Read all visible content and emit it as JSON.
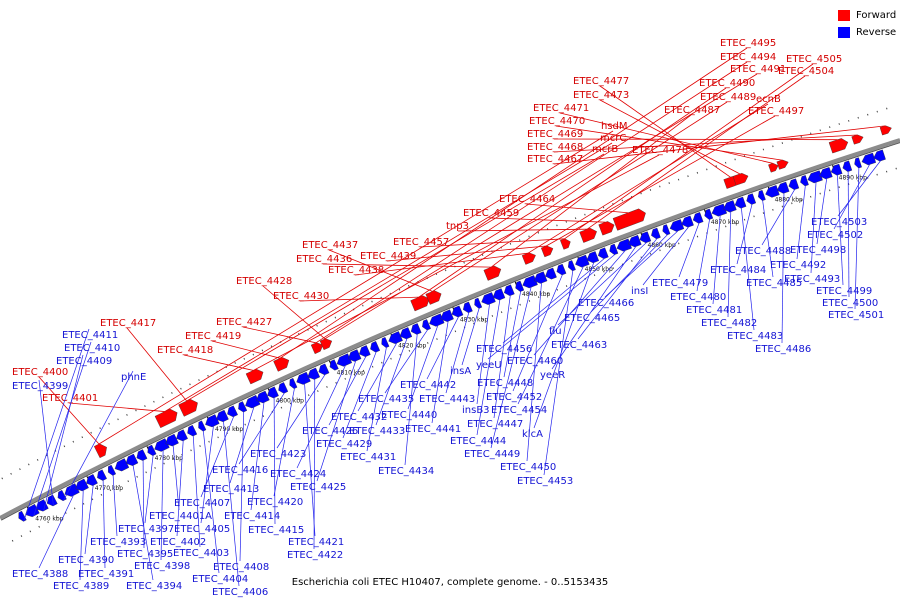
{
  "caption": "Escherichia coli ETEC H10407, complete genome. - 0..5153435",
  "legend": [
    {
      "label": "Forward",
      "color": "#ff0000"
    },
    {
      "label": "Reverse",
      "color": "#0000ff"
    }
  ],
  "ticks": [
    "4760 kbp",
    "4770 kbp",
    "4780 kbp",
    "4790 kbp",
    "4800 kbp",
    "4810 kbp",
    "4820 kbp",
    "4830 kbp",
    "4840 kbp",
    "4850 kbp",
    "4860 kbp",
    "4870 kbp",
    "4880 kbp",
    "4890 kbp"
  ],
  "forward_labels": [
    "ETEC_4400",
    "ETEC_4401",
    "ETEC_4417",
    "ETEC_4418",
    "ETEC_4419",
    "ETEC_4427",
    "ETEC_4428",
    "ETEC_4430",
    "ETEC_4437",
    "ETEC_4436",
    "ETEC_4438",
    "ETEC_4439",
    "ETEC_4457",
    "tnp3",
    "ETEC_4459",
    "ETEC_4464",
    "ETEC_4477",
    "ETEC_4473",
    "ETEC_4471",
    "ETEC_4470",
    "ETEC_4469",
    "ETEC_4468",
    "ETEC_4467",
    "hsdM",
    "mcrC",
    "mcrB",
    "ETEC_4478",
    "ETEC_4495",
    "ETEC_4494",
    "ETEC_4491",
    "ETEC_4490",
    "ETEC_4489",
    "ETEC_4487",
    "ecnB",
    "ETEC_4497",
    "ETEC_4505",
    "ETEC_4504"
  ],
  "reverse_labels": [
    "ETEC_4411",
    "ETEC_4410",
    "ETEC_4409",
    "ETEC_4399",
    "phnE",
    "ETEC_4388",
    "ETEC_4389",
    "ETEC_4390",
    "ETEC_4391",
    "ETEC_4393",
    "ETEC_4394",
    "ETEC_4395",
    "ETEC_4397",
    "ETEC_4398",
    "ETEC_4401A",
    "ETEC_4402",
    "ETEC_4403",
    "ETEC_4404",
    "ETEC_4405",
    "ETEC_4406",
    "ETEC_4407",
    "ETEC_4408",
    "ETEC_4413",
    "ETEC_4414",
    "ETEC_4415",
    "ETEC_4416",
    "ETEC_4420",
    "ETEC_4421",
    "ETEC_4422",
    "ETEC_4423",
    "ETEC_4424",
    "ETEC_4425",
    "ETEC_4426",
    "ETEC_4429",
    "ETEC_4431",
    "ETEC_4432",
    "ETEC_4433",
    "ETEC_4434",
    "ETEC_4435",
    "ETEC_4440",
    "ETEC_4441",
    "ETEC_4442",
    "ETEC_4443",
    "insA",
    "insB3",
    "ETEC_4444",
    "ETEC_4447",
    "ETEC_4448",
    "ETEC_4449",
    "ETEC_4450",
    "ETEC_4452",
    "ETEC_4453",
    "ETEC_4454",
    "klcA",
    "ETEC_4456",
    "yeeU",
    "ETEC_4460",
    "yeeR",
    "flu",
    "ETEC_4463",
    "ETEC_4465",
    "ETEC_4466",
    "insI",
    "ETEC_4479",
    "ETEC_4480",
    "ETEC_4481",
    "ETEC_4482",
    "ETEC_4483",
    "ETEC_4484",
    "ETEC_4485",
    "ETEC_4486",
    "ETEC_4488",
    "ETEC_4492",
    "ETEC_4493",
    "ETEC_4498",
    "ETEC_4499",
    "ETEC_4500",
    "ETEC_4501",
    "ETEC_4502",
    "ETEC_4503"
  ],
  "colors": {
    "forward": "#ff0000",
    "reverse": "#0000ff",
    "forward_text": "#d40000",
    "reverse_text": "#1414d4",
    "backbone": "#8c8c8c",
    "leader_forward": "#e00000",
    "leader_reverse": "#2222ee"
  }
}
